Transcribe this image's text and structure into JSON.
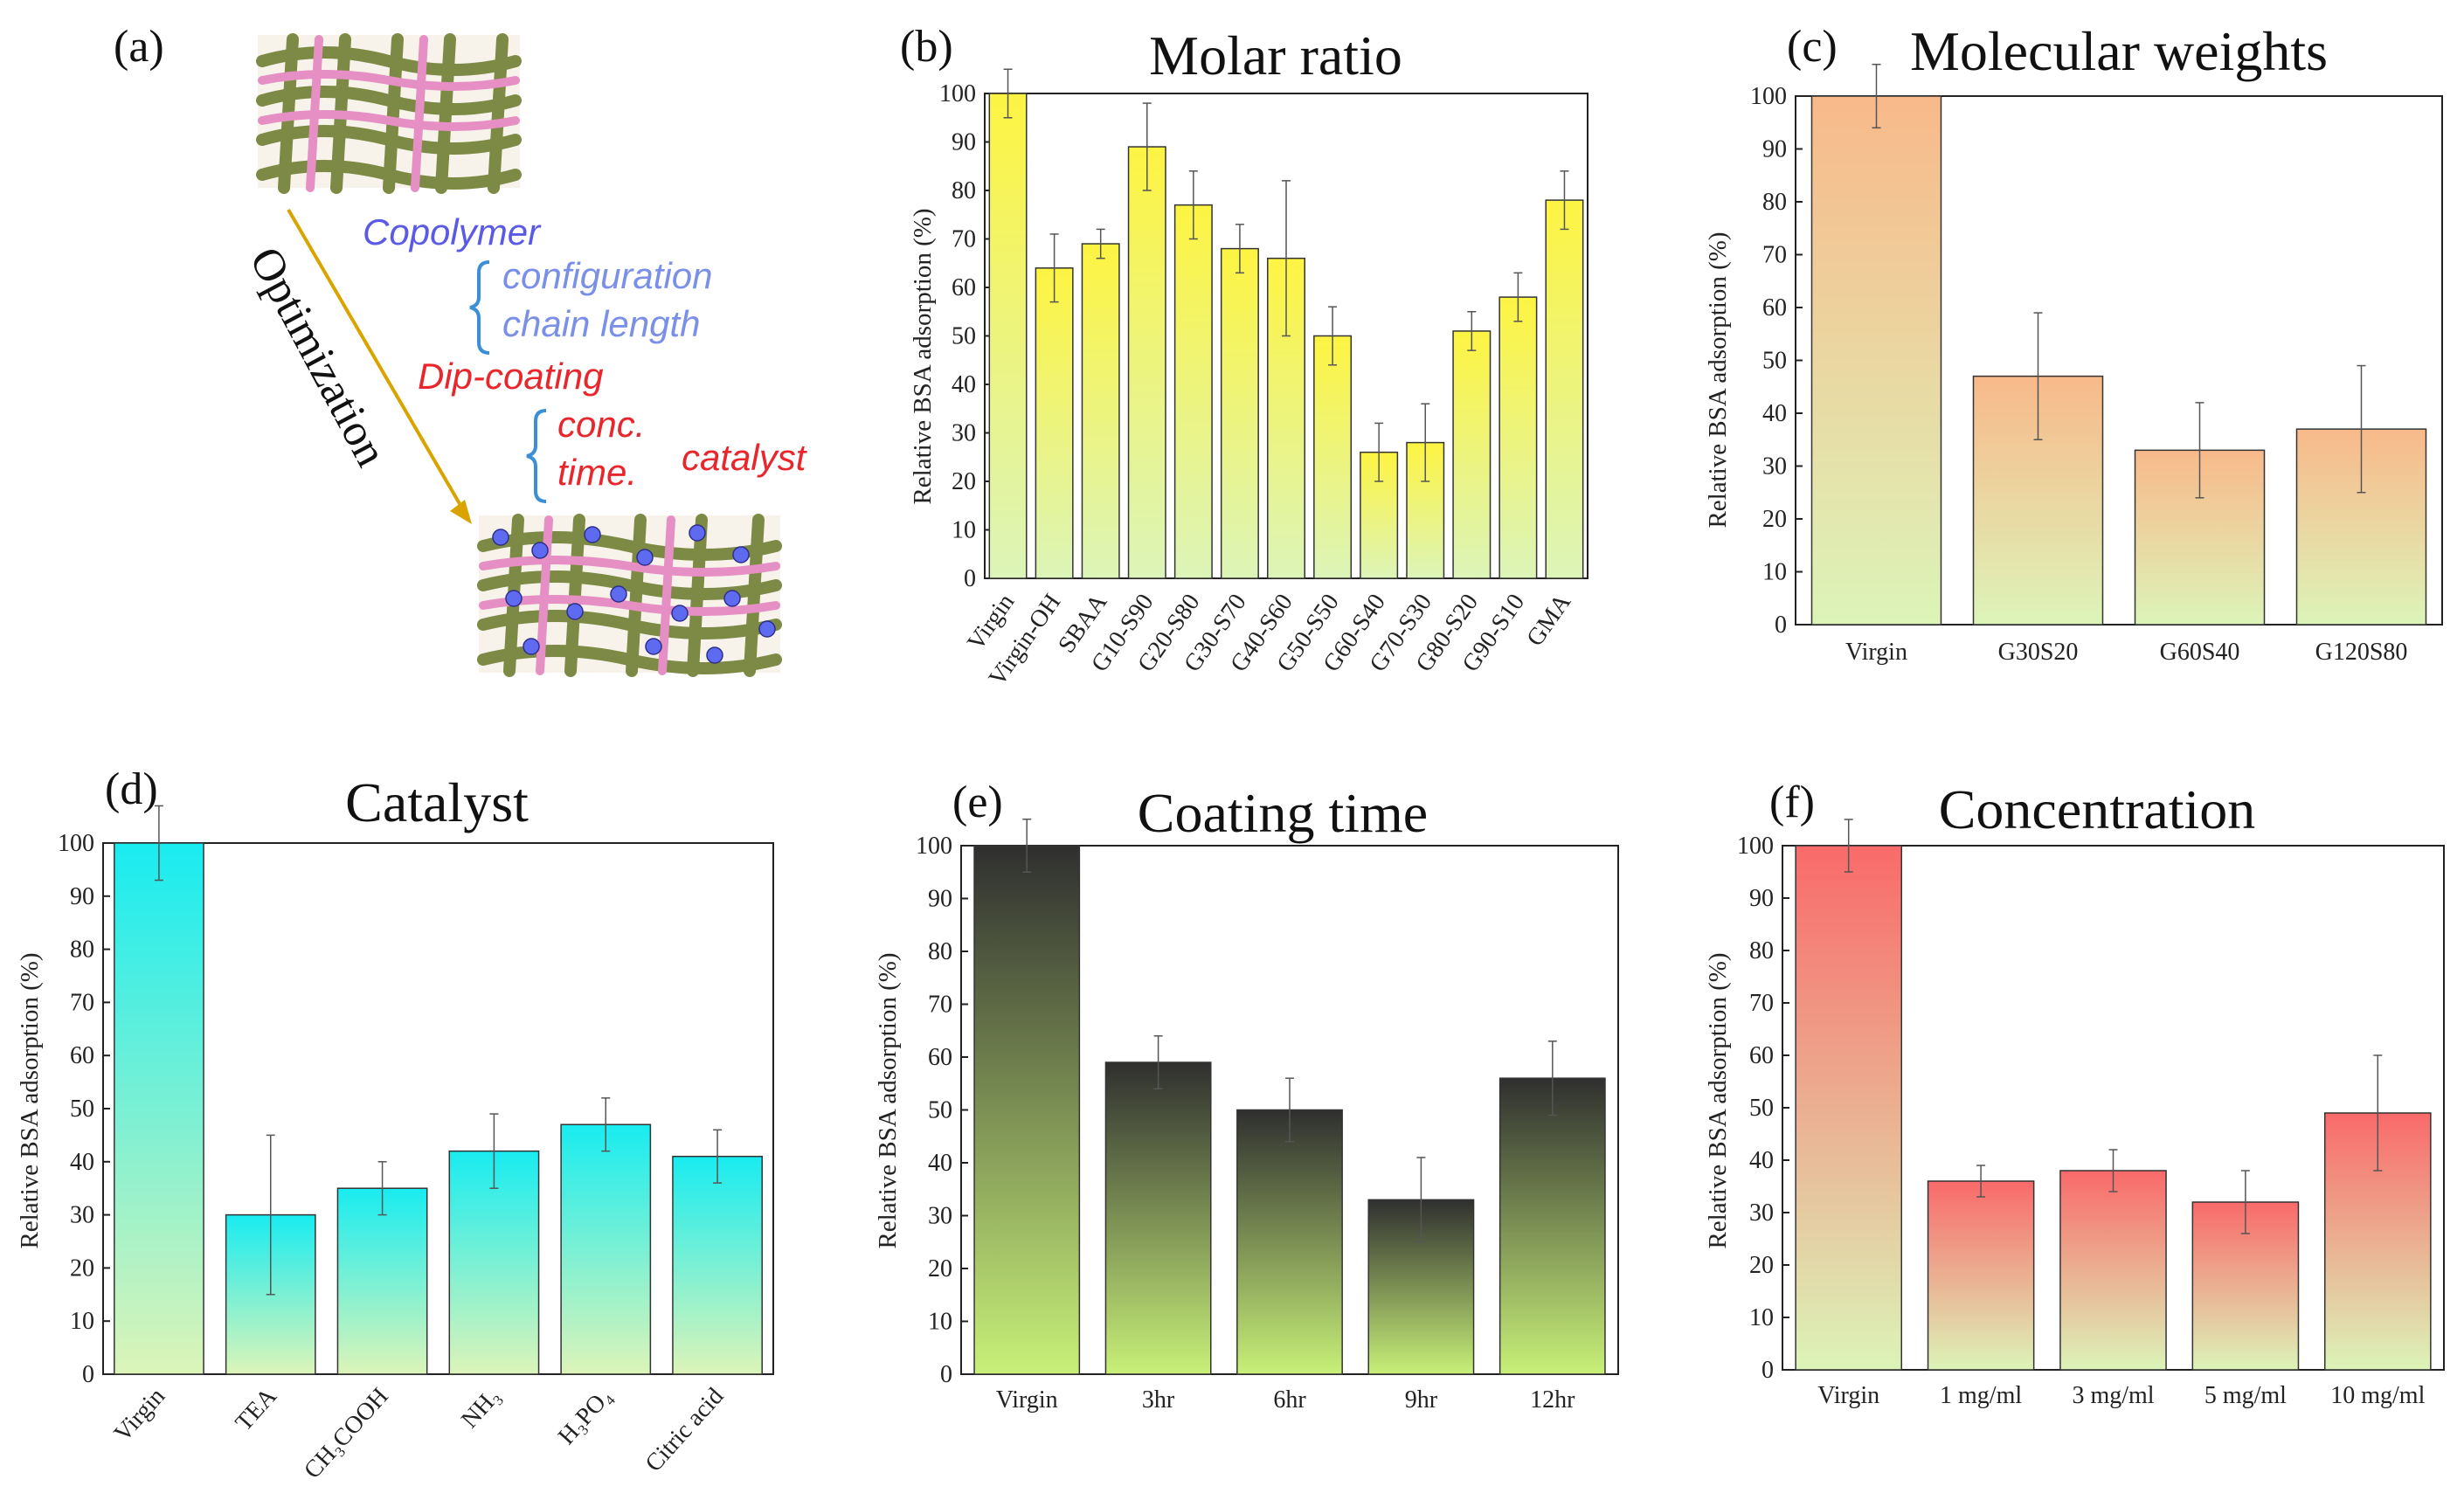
{
  "scheme": {
    "panel_label": "(a)",
    "arrow_label": "Optimization",
    "copolymer": "Copolymer",
    "configuration": "configuration",
    "chain_length": "chain length",
    "dip_coating": "Dip-coating",
    "conc": "conc.",
    "time": "time.",
    "catalyst": "catalyst",
    "colors": {
      "copolymer": "#5a5ae6",
      "sub_items": "#7a8fe8",
      "dip_coating": "#e8262b",
      "brace": "#3b8fd6",
      "arrow": "#d9a400",
      "fiber_green": "#7d8a45",
      "fiber_pink": "#e58fc4",
      "bead": "#5e6bf0"
    }
  },
  "chart_data": [
    {
      "id": "b",
      "panel_label": "(b)",
      "type": "bar",
      "title": "Molar ratio",
      "xlabel": "",
      "ylabel": "Relative BSA adsorption (%)",
      "ylim": [
        0,
        100
      ],
      "yticks": [
        0,
        10,
        20,
        30,
        40,
        50,
        60,
        70,
        80,
        90,
        100
      ],
      "tick_rotation": "rotated",
      "gradient": [
        "#fdf442",
        "#dcf4b8"
      ],
      "categories": [
        "Virgin",
        "Virgin-OH",
        "SBAA",
        "G10-S90",
        "G20-S80",
        "G30-S70",
        "G40-S60",
        "G50-S50",
        "G60-S40",
        "G70-S30",
        "G80-S20",
        "G90-S10",
        "GMA"
      ],
      "values": [
        100,
        64,
        69,
        89,
        77,
        68,
        66,
        50,
        26,
        28,
        51,
        58,
        78
      ],
      "errors": [
        5,
        7,
        3,
        9,
        7,
        5,
        16,
        6,
        6,
        8,
        4,
        5,
        6
      ]
    },
    {
      "id": "c",
      "panel_label": "(c)",
      "type": "bar",
      "title": "Molecular weights",
      "xlabel": "",
      "ylabel": "Relative BSA adsorption (%)",
      "ylim": [
        0,
        100
      ],
      "yticks": [
        0,
        10,
        20,
        30,
        40,
        50,
        60,
        70,
        80,
        90,
        100
      ],
      "tick_rotation": "none",
      "gradient": [
        "#f8b98a",
        "#dcf4b8"
      ],
      "categories": [
        "Virgin",
        "G30S20",
        "G60S40",
        "G120S80"
      ],
      "values": [
        100,
        47,
        33,
        37
      ],
      "errors": [
        6,
        12,
        9,
        12
      ]
    },
    {
      "id": "d",
      "panel_label": "(d)",
      "type": "bar",
      "title": "Catalyst",
      "xlabel": "",
      "ylabel": "Relative BSA adsorption (%)",
      "ylim": [
        0,
        100
      ],
      "yticks": [
        0,
        10,
        20,
        30,
        40,
        50,
        60,
        70,
        80,
        90,
        100
      ],
      "tick_rotation": "rotated",
      "gradient": [
        "#18ecf0",
        "#dcf4b8"
      ],
      "categories": [
        "Virgin",
        "TEA",
        "CH₃COOH",
        "NH₃",
        "H₃PO₄",
        "Citric acid"
      ],
      "values": [
        100,
        30,
        35,
        42,
        47,
        41
      ],
      "errors": [
        7,
        15,
        5,
        7,
        5,
        5
      ]
    },
    {
      "id": "e",
      "panel_label": "(e)",
      "type": "bar",
      "title": "Coating time",
      "xlabel": "",
      "ylabel": "Relative BSA adsorption (%)",
      "ylim": [
        0,
        100
      ],
      "yticks": [
        0,
        10,
        20,
        30,
        40,
        50,
        60,
        70,
        80,
        90,
        100
      ],
      "tick_rotation": "none",
      "gradient": [
        "#2f2f2f",
        "#c8f078"
      ],
      "categories": [
        "Virgin",
        "3hr",
        "6hr",
        "9hr",
        "12hr"
      ],
      "values": [
        100,
        59,
        50,
        33,
        56
      ],
      "errors": [
        5,
        5,
        6,
        8,
        7
      ]
    },
    {
      "id": "f",
      "panel_label": "(f)",
      "type": "bar",
      "title": "Concentration",
      "xlabel": "",
      "ylabel": "Relative BSA adsorption (%)",
      "ylim": [
        0,
        100
      ],
      "yticks": [
        0,
        10,
        20,
        30,
        40,
        50,
        60,
        70,
        80,
        90,
        100
      ],
      "tick_rotation": "none",
      "gradient": [
        "#f96a6a",
        "#dcf4b8"
      ],
      "categories": [
        "Virgin",
        "1 mg/ml",
        "3 mg/ml",
        "5 mg/ml",
        "10 mg/ml"
      ],
      "values": [
        100,
        36,
        38,
        32,
        49
      ],
      "errors": [
        5,
        3,
        4,
        6,
        11
      ]
    }
  ]
}
